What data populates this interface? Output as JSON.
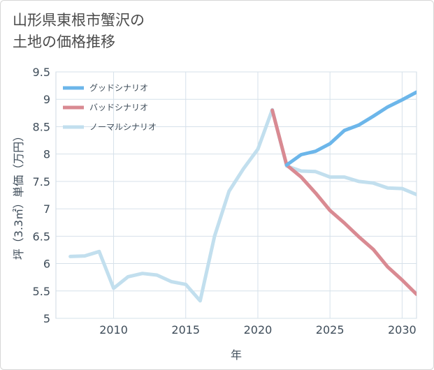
{
  "title": "山形県東根市蟹沢の\n土地の価格推移",
  "chart_data": {
    "type": "line",
    "title": "山形県東根市蟹沢の土地の価格推移",
    "xlabel": "年",
    "ylabel": "坪（3.3㎡）単価（万円）",
    "xlim": [
      2006,
      2031
    ],
    "ylim": [
      5,
      9.5
    ],
    "xticks": [
      2010,
      2015,
      2020,
      2025,
      2030
    ],
    "yticks": [
      5,
      5.5,
      6,
      6.5,
      7,
      7.5,
      8,
      8.5,
      9,
      9.5
    ],
    "grid": true,
    "legend_position": "top-left",
    "series": [
      {
        "name": "グッドシナリオ",
        "color": "#6cb6ea",
        "x": [
          2022,
          2023,
          2024,
          2025,
          2026,
          2027,
          2028,
          2029,
          2030,
          2031
        ],
        "values": [
          7.8,
          7.99,
          8.05,
          8.19,
          8.43,
          8.53,
          8.69,
          8.86,
          8.99,
          9.13
        ]
      },
      {
        "name": "バッドシナリオ",
        "color": "#d98a92",
        "x": [
          2021,
          2022,
          2023,
          2024,
          2025,
          2026,
          2027,
          2028,
          2029,
          2030,
          2031
        ],
        "values": [
          8.8,
          7.8,
          7.58,
          7.29,
          6.97,
          6.74,
          6.49,
          6.26,
          5.94,
          5.7,
          5.44
        ]
      },
      {
        "name": "ノーマルシナリオ",
        "color": "#c2dfee",
        "x": [
          2007,
          2008,
          2009,
          2010,
          2011,
          2012,
          2013,
          2014,
          2015,
          2016,
          2017,
          2018,
          2019,
          2020,
          2021,
          2022,
          2023,
          2024,
          2025,
          2026,
          2027,
          2028,
          2029,
          2030,
          2031
        ],
        "values": [
          6.13,
          6.14,
          6.22,
          5.55,
          5.76,
          5.82,
          5.79,
          5.67,
          5.62,
          5.32,
          6.5,
          7.32,
          7.73,
          8.09,
          8.81,
          7.78,
          7.69,
          7.68,
          7.58,
          7.58,
          7.5,
          7.47,
          7.38,
          7.37,
          7.26
        ]
      }
    ]
  }
}
